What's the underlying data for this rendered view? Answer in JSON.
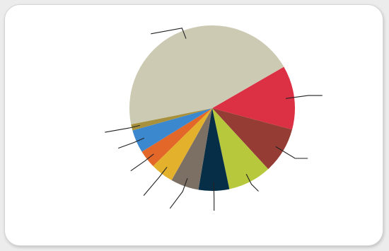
{
  "chart_data": {
    "type": "pie",
    "title": "",
    "start_angle_deg": 330,
    "direction": "clockwise",
    "slices": [
      {
        "value": 12.5,
        "color": "#dc3145"
      },
      {
        "value": 9.0,
        "color": "#953d35"
      },
      {
        "value": 8.5,
        "color": "#b7c83d"
      },
      {
        "value": 6.0,
        "color": "#062e46"
      },
      {
        "value": 5.5,
        "color": "#7c6f64"
      },
      {
        "value": 4.5,
        "color": "#e3b12b"
      },
      {
        "value": 3.5,
        "color": "#e4672a"
      },
      {
        "value": 4.5,
        "color": "#3c88cf"
      },
      {
        "value": 1.2,
        "color": "#a7913c"
      },
      {
        "value": 44.8,
        "color": "#cccab2"
      }
    ],
    "labels": [],
    "legend": "none",
    "leader_lines": true
  }
}
